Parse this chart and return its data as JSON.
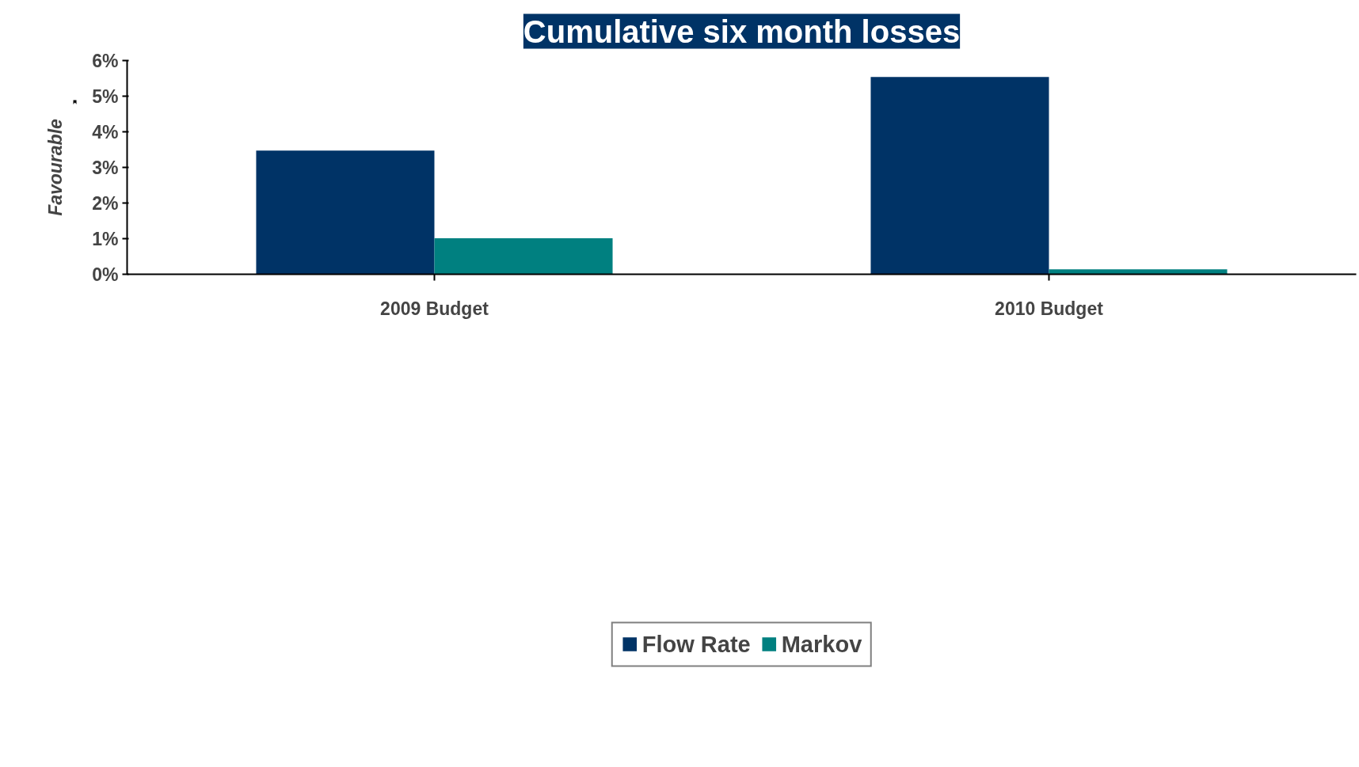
{
  "chart_data": {
    "type": "bar",
    "title": "Cumulative six month losses",
    "ylabel": "Favourable",
    "categories": [
      "2009 Budget",
      "2010 Budget"
    ],
    "series": [
      {
        "name": "Flow Rate",
        "color": "#003366",
        "values": [
          3.47,
          5.54
        ]
      },
      {
        "name": "Markov",
        "color": "#008080",
        "values": [
          1.01,
          0.14
        ]
      }
    ],
    "ylim": [
      0,
      6
    ],
    "yticks": [
      {
        "value": 0,
        "label": "0%"
      },
      {
        "value": 1,
        "label": "1%"
      },
      {
        "value": 2,
        "label": "2%"
      },
      {
        "value": 3,
        "label": "3%"
      },
      {
        "value": 4,
        "label": "4%"
      },
      {
        "value": 5,
        "label": "5%"
      },
      {
        "value": 6,
        "label": "6%"
      }
    ],
    "grid": false,
    "legend": "bottom"
  }
}
